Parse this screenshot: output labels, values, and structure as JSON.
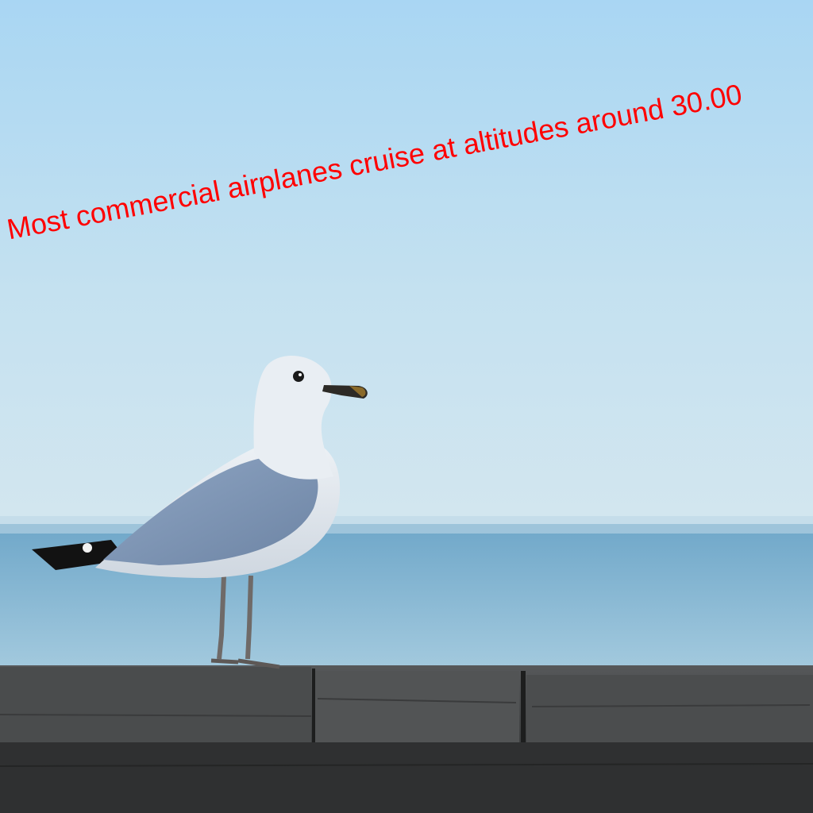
{
  "overlay": {
    "text": "Most commercial airplanes cruise at altitudes around 30.00",
    "color": "#ff0000"
  },
  "scene": {
    "subject": "seagull",
    "sky_top_color": "#a9d6f3",
    "sky_bottom_color": "#d3e6ef",
    "sea_color": "#7fb2d0",
    "wood_color": "#3f4040"
  }
}
